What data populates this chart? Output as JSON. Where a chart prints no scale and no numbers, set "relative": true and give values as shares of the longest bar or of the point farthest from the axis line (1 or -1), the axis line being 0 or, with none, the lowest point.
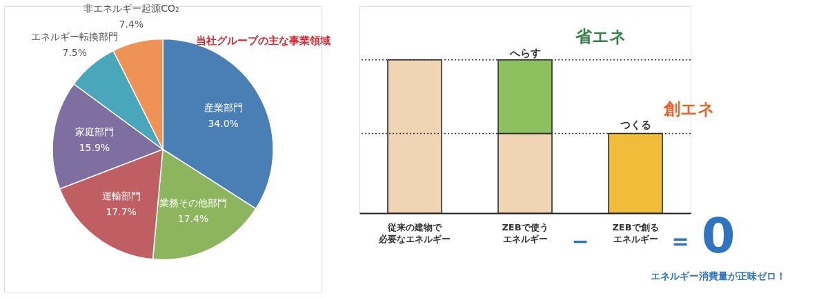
{
  "chart_data": [
    {
      "type": "pie",
      "categories": [
        "産業部門",
        "業務その他部門",
        "運輸部門",
        "家庭部門",
        "エネルギー転換部門",
        "非エネルギー起源CO₂"
      ],
      "values": [
        34.0,
        17.4,
        17.7,
        15.9,
        7.5,
        7.4
      ],
      "value_labels": [
        "34.0%",
        "17.4%",
        "17.7%",
        "15.9%",
        "7.5%",
        "7.4%"
      ],
      "colors": [
        "#4a7fb5",
        "#8db55e",
        "#bf5f63",
        "#7f6fa0",
        "#4aa7bb",
        "#ef9255"
      ],
      "annotations": [
        "当社グループの主な事業領域"
      ]
    },
    {
      "type": "bar",
      "relative": true,
      "stacked": true,
      "categories": [
        "従来の建物で必要なエネルギー",
        "ZEBで使うエネルギー",
        "ZEBで創るエネルギー"
      ],
      "series": [
        {
          "color": "#f0d5b5",
          "values": [
            1,
            0.52,
            null
          ]
        },
        {
          "color": "#8dc05e",
          "values": [
            null,
            0.48,
            null
          ]
        },
        {
          "color": "#f2bc3b",
          "values": [
            null,
            null,
            0.52
          ]
        }
      ],
      "ref_lines": [
        {
          "axis": "y",
          "value": 1,
          "line_style": "dotted"
        },
        {
          "axis": "y",
          "value": 0.52,
          "line_style": "dotted"
        }
      ],
      "annotations": [
        "へらす",
        "省エネ",
        "つくる",
        "創エネ",
        "−",
        "=",
        "0",
        "エネルギー消費量が正味ゼロ！"
      ]
    }
  ]
}
